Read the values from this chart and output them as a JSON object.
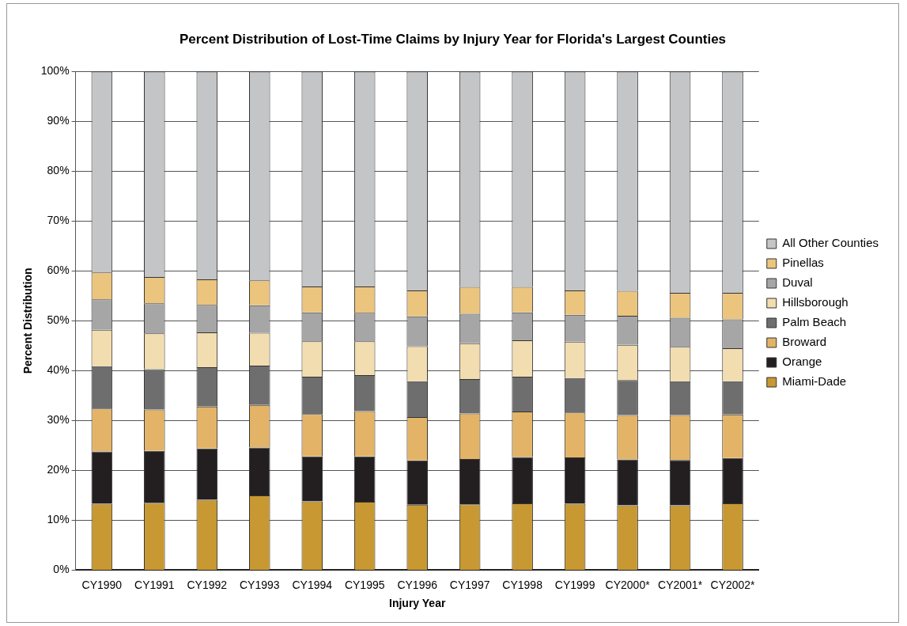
{
  "chart_data": {
    "type": "bar",
    "stacked": true,
    "title": "Percent Distribution of Lost-Time Claims by Injury Year for Florida's Largest Counties",
    "xlabel": "Injury Year",
    "ylabel": "Percent Distribution",
    "categories": [
      "CY1990",
      "CY1991",
      "CY1992",
      "CY1993",
      "CY1994",
      "CY1995",
      "CY1996",
      "CY1997",
      "CY1998",
      "CY1999",
      "CY2000*",
      "CY2001*",
      "CY2002*"
    ],
    "series": [
      {
        "name": "Miami-Dade",
        "color": "#c89833",
        "values": [
          13.3,
          13.5,
          14.1,
          15.0,
          13.8,
          13.7,
          13.1,
          13.2,
          13.4,
          13.3,
          13.0,
          13.0,
          13.4
        ]
      },
      {
        "name": "Orange",
        "color": "#231f20",
        "values": [
          10.5,
          10.4,
          10.3,
          9.6,
          9.0,
          9.1,
          8.9,
          9.1,
          9.3,
          9.3,
          9.2,
          9.1,
          9.1
        ]
      },
      {
        "name": "Broward",
        "color": "#e3b467",
        "values": [
          8.6,
          8.3,
          8.4,
          8.5,
          8.5,
          9.1,
          8.7,
          9.1,
          9.1,
          9.0,
          8.9,
          9.0,
          8.7
        ]
      },
      {
        "name": "Palm Beach",
        "color": "#6e6e6e",
        "values": [
          8.5,
          8.1,
          7.9,
          7.9,
          7.5,
          7.2,
          7.2,
          6.9,
          7.0,
          6.9,
          7.0,
          6.8,
          6.7
        ]
      },
      {
        "name": "Hillsborough",
        "color": "#f2ddb0",
        "values": [
          7.3,
          7.2,
          7.0,
          6.6,
          7.1,
          6.8,
          7.0,
          7.2,
          7.3,
          7.3,
          7.1,
          6.9,
          6.6
        ]
      },
      {
        "name": "Duval",
        "color": "#a6a6a6",
        "values": [
          6.1,
          6.0,
          5.5,
          5.5,
          5.8,
          5.7,
          6.0,
          5.9,
          5.6,
          5.4,
          5.8,
          5.8,
          5.8
        ]
      },
      {
        "name": "Pinellas",
        "color": "#ebc47e",
        "values": [
          5.4,
          5.3,
          5.1,
          5.0,
          5.2,
          5.3,
          5.2,
          5.4,
          5.1,
          4.9,
          5.0,
          5.0,
          5.3
        ]
      },
      {
        "name": "All Other Counties",
        "color": "#c4c5c7",
        "values": [
          40.3,
          41.2,
          41.7,
          41.9,
          43.1,
          43.1,
          43.9,
          43.2,
          43.2,
          43.9,
          44.0,
          44.4,
          44.4
        ]
      }
    ],
    "ylim": [
      0,
      100
    ],
    "yticks": [
      {
        "value": 0,
        "label": "0%"
      },
      {
        "value": 10,
        "label": "10%"
      },
      {
        "value": 20,
        "label": "20%"
      },
      {
        "value": 30,
        "label": "30%"
      },
      {
        "value": 40,
        "label": "40%"
      },
      {
        "value": 50,
        "label": "50%"
      },
      {
        "value": 60,
        "label": "60%"
      },
      {
        "value": 70,
        "label": "70%"
      },
      {
        "value": 80,
        "label": "80%"
      },
      {
        "value": 90,
        "label": "90%"
      },
      {
        "value": 100,
        "label": "100%"
      }
    ],
    "grid": "y",
    "legend": "right"
  }
}
